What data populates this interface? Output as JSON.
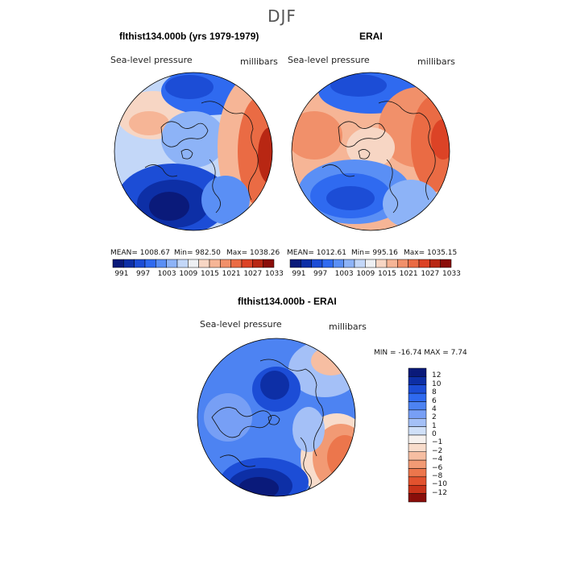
{
  "season": "DJF",
  "panels": [
    {
      "title": "flthist134.000b (yrs 1979-1979)",
      "variable": "Sea-level pressure",
      "units": "millibars",
      "stats": {
        "mean": "MEAN= 1008.67",
        "min": "Min= 982.50",
        "max": "Max= 1038.26"
      }
    },
    {
      "title": "ERAI",
      "variable": "Sea-level pressure",
      "units": "millibars",
      "stats": {
        "mean": "MEAN= 1012.61",
        "min": "Min= 995.16",
        "max": "Max= 1035.15"
      }
    },
    {
      "title": "flthist134.000b - ERAI",
      "variable": "Sea-level pressure",
      "units": "millibars",
      "minmax": "MIN = -16.74  MAX =   7.74"
    }
  ],
  "field_colorbar": {
    "colors": [
      "#0a1a7a",
      "#0d2fa6",
      "#1c4dd6",
      "#2f6af0",
      "#5a8ff5",
      "#8db3f7",
      "#c3d7f8",
      "#eef0f3",
      "#f7d6c4",
      "#f6b596",
      "#f1906a",
      "#ea6b44",
      "#dc4326",
      "#b82713",
      "#8a0e0a"
    ],
    "labels": [
      "991",
      "997",
      "1003",
      "1009",
      "1015",
      "1021",
      "1027",
      "1033"
    ]
  },
  "diff_colorbar": {
    "colors": [
      "#0a1a7a",
      "#0d2fa6",
      "#1c4dd6",
      "#2f6af0",
      "#4d83f2",
      "#779ff5",
      "#a4c0f7",
      "#d0e0f8",
      "#f6f1ee",
      "#f8dccb",
      "#f6bea2",
      "#f29a74",
      "#ec764c",
      "#e2522e",
      "#c9331a",
      "#8a0e0a"
    ],
    "labels": [
      "12",
      "10",
      "8",
      "6",
      "4",
      "2",
      "1",
      "0",
      "−1",
      "−2",
      "−4",
      "−6",
      "−8",
      "−10",
      "−12"
    ]
  },
  "map_colors": {
    "deep_low": "#0a1a7a",
    "low": "#1c4dd6",
    "mid_low": "#8db3f7",
    "neutral": "#eef0f3",
    "mid_high": "#f6b596",
    "high": "#dc4326",
    "deep_high": "#8a0e0a"
  }
}
